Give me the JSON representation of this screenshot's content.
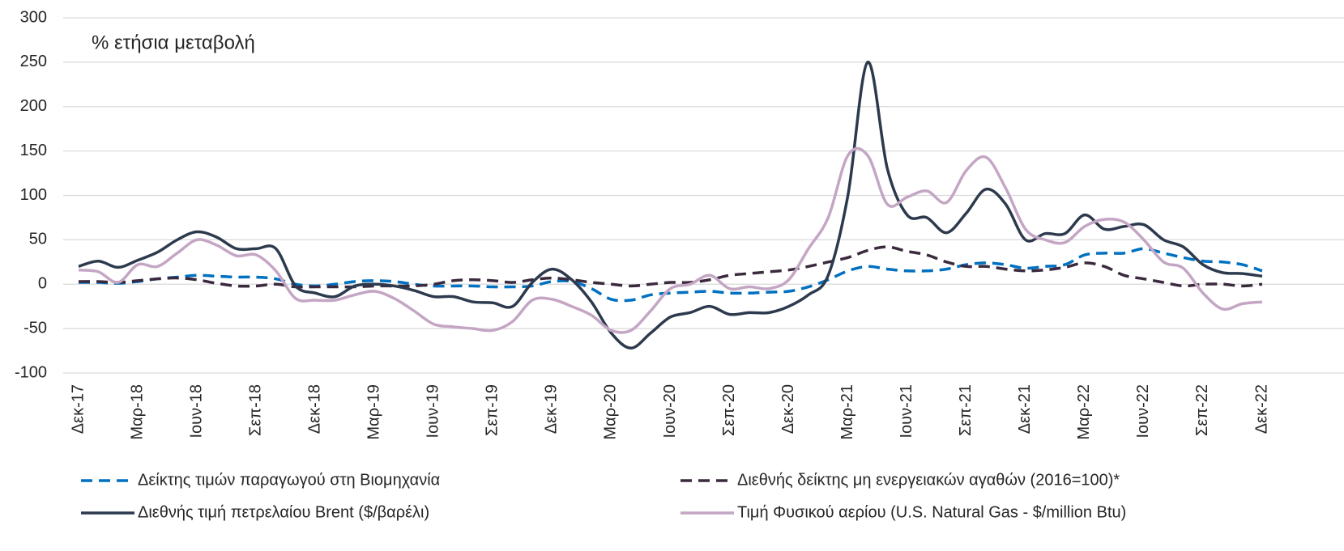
{
  "chart_data": {
    "type": "line",
    "annotation": "% ετήσια μεταβολή",
    "categories": [
      "Δεκ-17",
      null,
      null,
      "Μαρ-18",
      null,
      null,
      "Ιουν-18",
      null,
      null,
      "Σεπ-18",
      null,
      null,
      "Δεκ-18",
      null,
      null,
      "Μαρ-19",
      null,
      null,
      "Ιουν-19",
      null,
      null,
      "Σεπ-19",
      null,
      null,
      "Δεκ-19",
      null,
      null,
      "Μαρ-20",
      null,
      null,
      "Ιουν-20",
      null,
      null,
      "Σεπ-20",
      null,
      null,
      "Δεκ-20",
      null,
      null,
      "Μαρ-21",
      null,
      null,
      "Ιουν-21",
      null,
      null,
      "Σεπ-21",
      null,
      null,
      "Δεκ-21",
      null,
      null,
      "Μαρ-22",
      null,
      null,
      "Ιουν-22",
      null,
      null,
      "Σεπ-22",
      null,
      null,
      "Δεκ-22"
    ],
    "series": [
      {
        "name": "Δείκτης τιμών παραγωγού στη Βιομηχανία",
        "color": "#0070c0",
        "dash": true,
        "values": [
          2,
          2,
          1,
          3,
          6,
          8,
          10,
          9,
          8,
          8,
          6,
          0,
          -2,
          0,
          3,
          4,
          3,
          0,
          -2,
          -2,
          -2,
          -3,
          -3,
          -2,
          3,
          3,
          -5,
          -17,
          -18,
          -12,
          -10,
          -9,
          -8,
          -10,
          -10,
          -9,
          -8,
          -3,
          5,
          15,
          20,
          17,
          15,
          15,
          17,
          22,
          24,
          22,
          18,
          20,
          22,
          33,
          35,
          35,
          40,
          35,
          30,
          26,
          25,
          22,
          15
        ]
      },
      {
        "name": "Διεθνής δείκτης μη ενεργειακών αγαθών (2016=100)*",
        "color": "#3b2a3e",
        "dash": true,
        "values": [
          3,
          3,
          2,
          4,
          6,
          7,
          5,
          1,
          -2,
          -2,
          0,
          -3,
          -3,
          -3,
          -3,
          -2,
          -2,
          -2,
          0,
          4,
          5,
          4,
          2,
          5,
          7,
          5,
          2,
          0,
          -2,
          0,
          2,
          2,
          5,
          10,
          12,
          14,
          16,
          20,
          25,
          30,
          38,
          42,
          37,
          33,
          25,
          20,
          20,
          17,
          15,
          16,
          19,
          24,
          20,
          10,
          6,
          2,
          -2,
          0,
          0,
          -2,
          0
        ]
      },
      {
        "name": "Διεθνής τιμή πετρελαίου Brent ($/βαρέλι)",
        "color": "#2d3a4e",
        "dash": false,
        "values": [
          20,
          26,
          19,
          27,
          36,
          50,
          59,
          53,
          40,
          40,
          40,
          -2,
          -10,
          -14,
          -2,
          0,
          -2,
          -7,
          -14,
          -14,
          -20,
          -21,
          -25,
          2,
          17,
          5,
          -20,
          -55,
          -72,
          -55,
          -37,
          -32,
          -25,
          -34,
          -32,
          -32,
          -25,
          -12,
          10,
          100,
          250,
          130,
          78,
          75,
          58,
          80,
          107,
          90,
          50,
          57,
          57,
          78,
          62,
          65,
          67,
          50,
          42,
          22,
          13,
          12,
          9
        ]
      },
      {
        "name": "Τιμή Φυσικού αερίου (U.S. Natural Gas - $/million Btu)",
        "color": "#c4a6c4",
        "dash": false,
        "values": [
          16,
          14,
          2,
          22,
          20,
          35,
          50,
          44,
          32,
          33,
          15,
          -16,
          -18,
          -18,
          -12,
          -8,
          -16,
          -30,
          -45,
          -48,
          -50,
          -52,
          -42,
          -18,
          -17,
          -25,
          -35,
          -52,
          -52,
          -30,
          -5,
          0,
          10,
          -5,
          -3,
          -5,
          5,
          40,
          75,
          145,
          145,
          90,
          98,
          105,
          92,
          128,
          143,
          108,
          62,
          50,
          47,
          65,
          73,
          70,
          50,
          25,
          18,
          -10,
          -28,
          -22,
          -20
        ]
      }
    ],
    "ylim": [
      -100,
      300
    ],
    "yticks": [
      -100,
      -50,
      0,
      50,
      100,
      150,
      200,
      250,
      300
    ],
    "grid": true,
    "legend": "bottom"
  }
}
